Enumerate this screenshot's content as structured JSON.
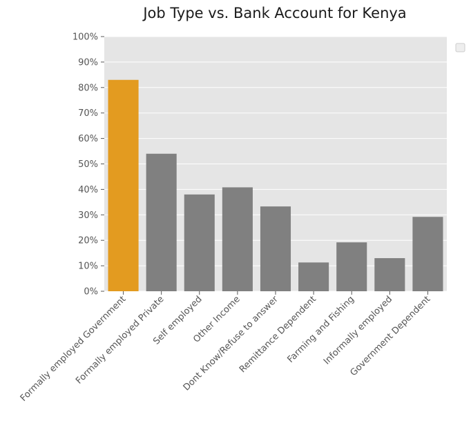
{
  "chart_data": {
    "type": "bar",
    "title": "Job Type vs. Bank Account for Kenya",
    "xlabel": "",
    "ylabel": "",
    "categories": [
      "Formally employed Government",
      "Formally employed Private",
      "Self employed",
      "Other Income",
      "Dont Know/Refuse to answer",
      "Remittance Dependent",
      "Farming and Fishing",
      "Informally employed",
      "Government Dependent"
    ],
    "values": [
      83,
      54,
      38,
      40.8,
      33.3,
      11.3,
      19.2,
      13,
      29.2
    ],
    "ylim": [
      0,
      100
    ],
    "yticks": [
      "0%",
      "10%",
      "20%",
      "30%",
      "40%",
      "50%",
      "60%",
      "70%",
      "80%",
      "90%",
      "100%"
    ],
    "grid": true,
    "legend": {
      "placement": "top-right",
      "entries": []
    },
    "colors": {
      "highlight": "#e39b20",
      "default": "#808080",
      "plot_background": "#e5e5e5",
      "grid": "#ffffff"
    },
    "highlight_index": 0
  }
}
